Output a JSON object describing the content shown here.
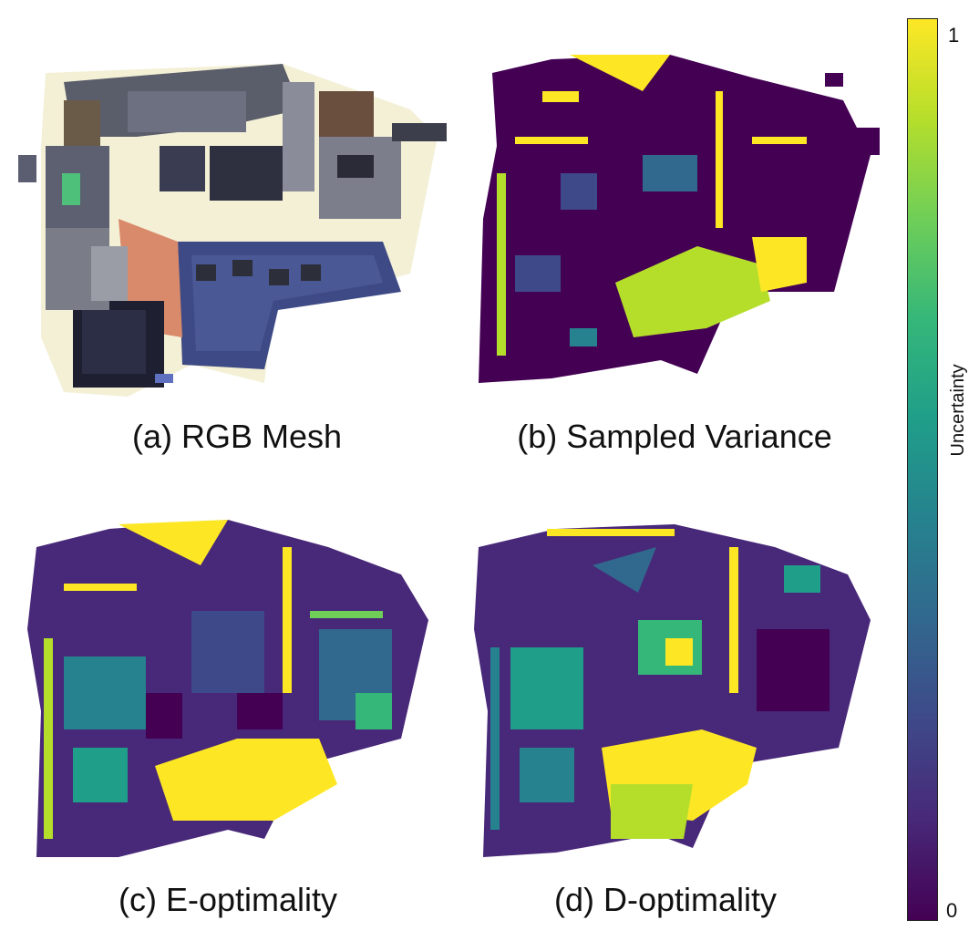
{
  "panels": [
    {
      "id": "a",
      "caption": "(a) RGB Mesh",
      "style": "rgb"
    },
    {
      "id": "b",
      "caption": "(b) Sampled Variance",
      "style": "viridis-sparse"
    },
    {
      "id": "c",
      "caption": "(c) E-optimality",
      "style": "viridis-medium"
    },
    {
      "id": "d",
      "caption": "(d) D-optimality",
      "style": "viridis-medium"
    }
  ],
  "colorbar": {
    "label": "Uncertainty",
    "max_label": "1",
    "min_label": "0",
    "colormap": "viridis",
    "stops": [
      "#440154",
      "#482878",
      "#3e4989",
      "#31688e",
      "#26828e",
      "#1f9e89",
      "#35b779",
      "#6ece58",
      "#b5de2b",
      "#fde725"
    ]
  }
}
